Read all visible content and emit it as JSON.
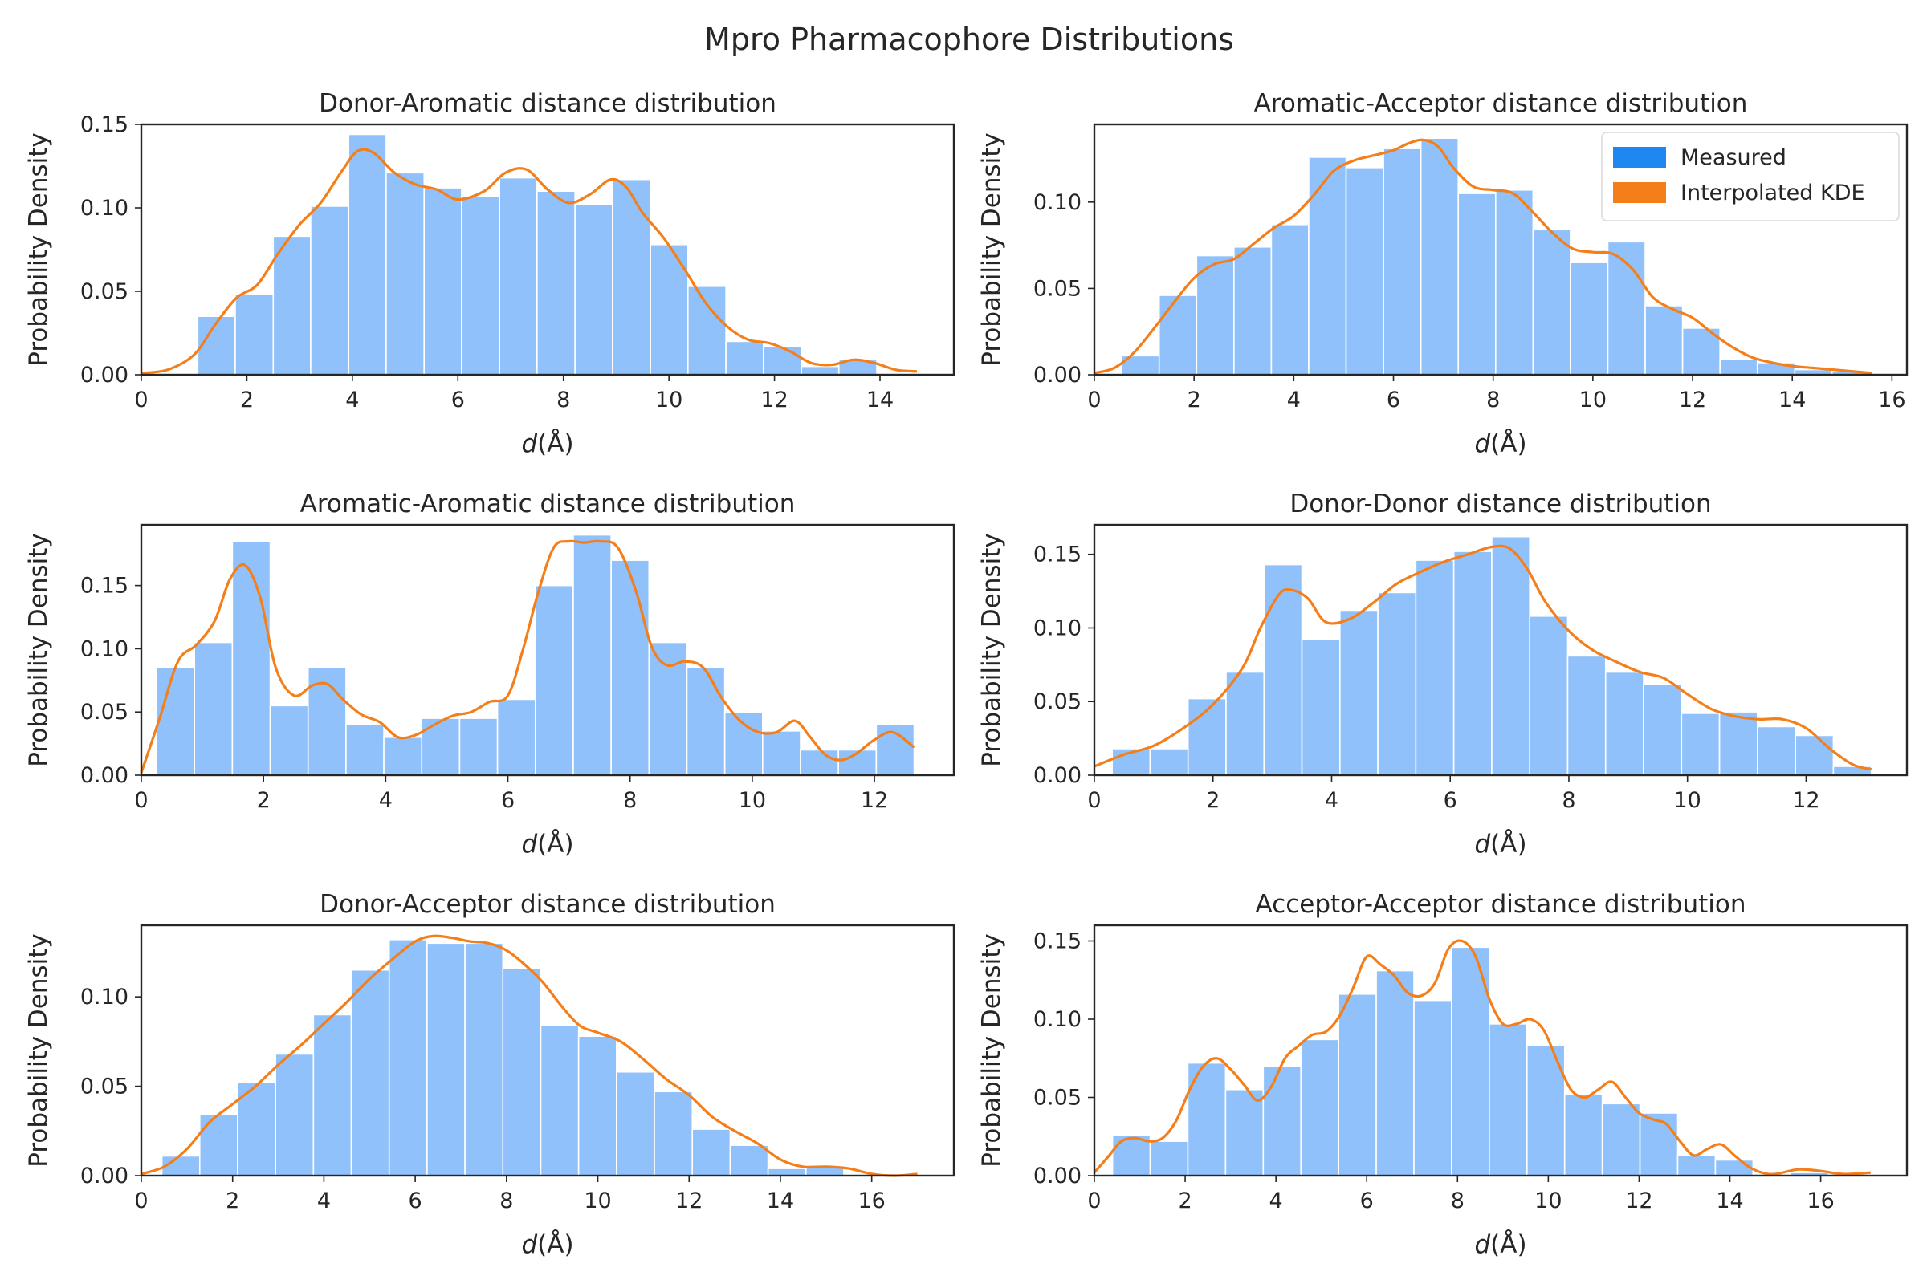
{
  "figure": {
    "title": "Mpro Pharmacophore Distributions",
    "colors": {
      "bars": "#90C1FA",
      "kde": "#F47F1A",
      "legend_measured": "#1E87F0",
      "legend_kde": "#F47F1A",
      "frame": "#262626"
    }
  },
  "legend": {
    "location": "upper right",
    "panel": 1,
    "entries": [
      "Measured",
      "Interpolated KDE"
    ]
  },
  "chart_data": [
    {
      "type": "histogram+kde",
      "title": "Donor-Aromatic distance distribution",
      "xlabel": "d(Å)",
      "ylabel": "Probability Density",
      "xlim": [
        0,
        15.4
      ],
      "ylim": [
        0,
        0.15
      ],
      "xticks": [
        0,
        2,
        4,
        6,
        8,
        10,
        12,
        14
      ],
      "yticks": [
        "0.00",
        "0.05",
        "0.10",
        "0.15"
      ],
      "series": [
        {
          "name": "Measured",
          "bin_edges": [
            1.07,
            1.78,
            2.5,
            3.21,
            3.93,
            4.64,
            5.36,
            6.07,
            6.79,
            7.5,
            8.22,
            8.93,
            9.65,
            10.36,
            11.08,
            11.79,
            12.51,
            13.22,
            13.94
          ],
          "values": [
            0.035,
            0.048,
            0.083,
            0.101,
            0.144,
            0.121,
            0.112,
            0.107,
            0.118,
            0.11,
            0.102,
            0.117,
            0.078,
            0.053,
            0.02,
            0.017,
            0.005,
            0.009
          ]
        },
        {
          "name": "Interpolated KDE",
          "x": [
            0,
            0.5,
            1.0,
            1.4,
            1.8,
            2.2,
            2.6,
            3.0,
            3.4,
            3.8,
            4.1,
            4.4,
            4.8,
            5.2,
            5.6,
            6.0,
            6.5,
            6.9,
            7.3,
            7.7,
            8.1,
            8.5,
            8.9,
            9.2,
            9.5,
            9.9,
            10.3,
            10.7,
            11.1,
            11.5,
            11.9,
            12.3,
            12.7,
            13.1,
            13.5,
            13.9,
            14.3,
            14.7
          ],
          "y": [
            0.001,
            0.003,
            0.012,
            0.03,
            0.046,
            0.054,
            0.073,
            0.09,
            0.103,
            0.122,
            0.134,
            0.133,
            0.121,
            0.114,
            0.111,
            0.105,
            0.11,
            0.121,
            0.123,
            0.111,
            0.103,
            0.108,
            0.117,
            0.112,
            0.097,
            0.082,
            0.063,
            0.043,
            0.029,
            0.021,
            0.019,
            0.014,
            0.007,
            0.006,
            0.009,
            0.007,
            0.003,
            0.002
          ]
        }
      ]
    },
    {
      "type": "histogram+kde",
      "title": "Aromatic-Acceptor distance distribution",
      "xlabel": "d(Å)",
      "ylabel": "Probability Density",
      "xlim": [
        0,
        16.3
      ],
      "ylim": [
        0,
        0.145
      ],
      "xticks": [
        0,
        2,
        4,
        6,
        8,
        10,
        12,
        14,
        16
      ],
      "yticks": [
        "0.00",
        "0.05",
        "0.10"
      ],
      "series": [
        {
          "name": "Measured",
          "bin_edges": [
            0.55,
            1.3,
            2.05,
            2.8,
            3.55,
            4.3,
            5.05,
            5.8,
            6.55,
            7.3,
            8.05,
            8.8,
            9.55,
            10.3,
            11.05,
            11.8,
            12.55,
            13.3,
            14.05,
            14.8,
            15.55
          ],
          "values": [
            0.011,
            0.046,
            0.069,
            0.074,
            0.087,
            0.126,
            0.12,
            0.131,
            0.137,
            0.105,
            0.107,
            0.084,
            0.065,
            0.077,
            0.04,
            0.027,
            0.009,
            0.007,
            0.003,
            0.002
          ]
        },
        {
          "name": "Interpolated KDE",
          "x": [
            0,
            0.4,
            0.8,
            1.2,
            1.6,
            2.0,
            2.4,
            2.8,
            3.2,
            3.6,
            4.0,
            4.4,
            4.8,
            5.2,
            5.6,
            6.0,
            6.3,
            6.6,
            6.9,
            7.2,
            7.6,
            8.0,
            8.4,
            8.8,
            9.2,
            9.6,
            10.0,
            10.4,
            10.8,
            11.2,
            11.6,
            12.0,
            12.4,
            12.8,
            13.2,
            13.6,
            14.0,
            14.4,
            14.8,
            15.2,
            15.6
          ],
          "y": [
            0.001,
            0.004,
            0.013,
            0.027,
            0.042,
            0.056,
            0.064,
            0.067,
            0.076,
            0.085,
            0.092,
            0.104,
            0.118,
            0.124,
            0.127,
            0.13,
            0.134,
            0.136,
            0.132,
            0.12,
            0.109,
            0.107,
            0.105,
            0.094,
            0.082,
            0.073,
            0.071,
            0.07,
            0.061,
            0.045,
            0.038,
            0.033,
            0.024,
            0.016,
            0.01,
            0.007,
            0.005,
            0.004,
            0.003,
            0.002,
            0.001
          ]
        }
      ]
    },
    {
      "type": "histogram+kde",
      "title": "Aromatic-Aromatic distance distribution",
      "xlabel": "d(Å)",
      "ylabel": "Probability Density",
      "xlim": [
        0,
        13.3
      ],
      "ylim": [
        0,
        0.198
      ],
      "xticks": [
        0,
        2,
        4,
        6,
        8,
        10,
        12
      ],
      "yticks": [
        "0.00",
        "0.05",
        "0.10",
        "0.15"
      ],
      "series": [
        {
          "name": "Measured",
          "bin_edges": [
            0.25,
            0.87,
            1.49,
            2.11,
            2.73,
            3.35,
            3.97,
            4.59,
            5.21,
            5.83,
            6.45,
            7.07,
            7.69,
            8.31,
            8.93,
            9.55,
            10.17,
            10.79,
            11.41,
            12.03,
            12.65
          ],
          "values": [
            0.085,
            0.105,
            0.185,
            0.055,
            0.085,
            0.04,
            0.03,
            0.045,
            0.045,
            0.06,
            0.15,
            0.19,
            0.17,
            0.105,
            0.085,
            0.05,
            0.035,
            0.02,
            0.02,
            0.04
          ]
        },
        {
          "name": "Interpolated KDE",
          "x": [
            0,
            0.3,
            0.6,
            0.9,
            1.2,
            1.45,
            1.7,
            1.95,
            2.2,
            2.5,
            2.8,
            3.05,
            3.3,
            3.6,
            3.9,
            4.2,
            4.5,
            4.8,
            5.1,
            5.4,
            5.7,
            6.0,
            6.25,
            6.5,
            6.75,
            7.0,
            7.25,
            7.5,
            7.8,
            8.1,
            8.35,
            8.6,
            8.9,
            9.2,
            9.5,
            9.8,
            10.1,
            10.4,
            10.7,
            10.95,
            11.2,
            11.45,
            11.7,
            12.0,
            12.3,
            12.65
          ],
          "y": [
            0.002,
            0.045,
            0.09,
            0.103,
            0.122,
            0.155,
            0.166,
            0.14,
            0.085,
            0.063,
            0.071,
            0.072,
            0.06,
            0.048,
            0.042,
            0.03,
            0.032,
            0.04,
            0.047,
            0.05,
            0.058,
            0.063,
            0.1,
            0.145,
            0.18,
            0.185,
            0.184,
            0.185,
            0.18,
            0.145,
            0.102,
            0.087,
            0.09,
            0.085,
            0.061,
            0.043,
            0.034,
            0.034,
            0.043,
            0.03,
            0.016,
            0.012,
            0.017,
            0.028,
            0.034,
            0.022
          ]
        }
      ]
    },
    {
      "type": "histogram+kde",
      "title": "Donor-Donor distance distribution",
      "xlabel": "d(Å)",
      "ylabel": "Probability Density",
      "xlim": [
        0,
        13.7
      ],
      "ylim": [
        0,
        0.17
      ],
      "xticks": [
        0,
        2,
        4,
        6,
        8,
        10,
        12
      ],
      "yticks": [
        "0.00",
        "0.05",
        "0.10",
        "0.15"
      ],
      "series": [
        {
          "name": "Measured",
          "bin_edges": [
            0.3,
            0.94,
            1.58,
            2.22,
            2.86,
            3.5,
            4.14,
            4.78,
            5.42,
            6.06,
            6.7,
            7.34,
            7.98,
            8.62,
            9.26,
            9.9,
            10.54,
            11.18,
            11.82,
            12.46,
            13.1
          ],
          "values": [
            0.018,
            0.018,
            0.052,
            0.07,
            0.143,
            0.092,
            0.112,
            0.124,
            0.146,
            0.152,
            0.162,
            0.108,
            0.081,
            0.07,
            0.062,
            0.042,
            0.043,
            0.033,
            0.027,
            0.006
          ]
        },
        {
          "name": "Interpolated KDE",
          "x": [
            0,
            0.5,
            1.0,
            1.5,
            2.0,
            2.5,
            2.8,
            3.1,
            3.3,
            3.6,
            3.9,
            4.3,
            4.7,
            5.1,
            5.5,
            5.9,
            6.3,
            6.7,
            7.0,
            7.3,
            7.6,
            8.0,
            8.4,
            8.8,
            9.2,
            9.6,
            10.0,
            10.4,
            10.8,
            11.2,
            11.6,
            12.0,
            12.4,
            12.8,
            13.1
          ],
          "y": [
            0.006,
            0.014,
            0.02,
            0.032,
            0.048,
            0.073,
            0.1,
            0.122,
            0.126,
            0.12,
            0.104,
            0.106,
            0.117,
            0.13,
            0.138,
            0.145,
            0.15,
            0.155,
            0.154,
            0.14,
            0.118,
            0.098,
            0.085,
            0.077,
            0.07,
            0.066,
            0.055,
            0.045,
            0.04,
            0.038,
            0.038,
            0.032,
            0.018,
            0.007,
            0.004
          ]
        }
      ]
    },
    {
      "type": "histogram+kde",
      "title": "Donor-Acceptor distance distribution",
      "xlabel": "d(Å)",
      "ylabel": "Probability Density",
      "xlim": [
        0,
        17.8
      ],
      "ylim": [
        0,
        0.14
      ],
      "xticks": [
        0,
        2,
        4,
        6,
        8,
        10,
        12,
        14,
        16
      ],
      "yticks": [
        "0.00",
        "0.05",
        "0.10"
      ],
      "series": [
        {
          "name": "Measured",
          "bin_edges": [
            0.45,
            1.28,
            2.11,
            2.94,
            3.77,
            4.6,
            5.43,
            6.26,
            7.09,
            7.92,
            8.75,
            9.58,
            10.41,
            11.24,
            12.07,
            12.9,
            13.73,
            14.56,
            15.39
          ],
          "values": [
            0.011,
            0.034,
            0.052,
            0.068,
            0.09,
            0.115,
            0.132,
            0.13,
            0.13,
            0.116,
            0.084,
            0.078,
            0.058,
            0.047,
            0.026,
            0.017,
            0.004,
            0.005
          ]
        },
        {
          "name": "Interpolated KDE",
          "x": [
            0,
            0.5,
            1.0,
            1.5,
            2.0,
            2.5,
            3.0,
            3.5,
            4.0,
            4.5,
            5.0,
            5.5,
            6.0,
            6.4,
            6.8,
            7.2,
            7.6,
            8.0,
            8.4,
            8.8,
            9.2,
            9.6,
            10.0,
            10.5,
            11.0,
            11.5,
            12.0,
            12.5,
            13.0,
            13.5,
            14.0,
            14.5,
            15.0,
            15.5,
            16.0,
            16.5,
            17.0
          ],
          "y": [
            0.001,
            0.005,
            0.015,
            0.03,
            0.04,
            0.05,
            0.062,
            0.073,
            0.085,
            0.097,
            0.11,
            0.121,
            0.131,
            0.134,
            0.133,
            0.131,
            0.13,
            0.126,
            0.118,
            0.108,
            0.095,
            0.084,
            0.08,
            0.075,
            0.065,
            0.054,
            0.045,
            0.033,
            0.025,
            0.018,
            0.009,
            0.005,
            0.005,
            0.004,
            0.001,
            0.0,
            0.001
          ]
        }
      ]
    },
    {
      "type": "histogram+kde",
      "title": "Acceptor-Acceptor distance distribution",
      "xlabel": "d(Å)",
      "ylabel": "Probability Density",
      "xlim": [
        0,
        17.9
      ],
      "ylim": [
        0,
        0.16
      ],
      "xticks": [
        0,
        2,
        4,
        6,
        8,
        10,
        12,
        14,
        16
      ],
      "yticks": [
        "0.00",
        "0.05",
        "0.10",
        "0.15"
      ],
      "series": [
        {
          "name": "Measured",
          "bin_edges": [
            0.4,
            1.23,
            2.06,
            2.89,
            3.72,
            4.55,
            5.38,
            6.21,
            7.04,
            7.87,
            8.7,
            9.53,
            10.36,
            11.19,
            12.02,
            12.85,
            13.68,
            14.51,
            15.34,
            16.17,
            17.0
          ],
          "values": [
            0.026,
            0.022,
            0.072,
            0.055,
            0.07,
            0.087,
            0.116,
            0.131,
            0.112,
            0.146,
            0.097,
            0.083,
            0.052,
            0.046,
            0.04,
            0.013,
            0.01,
            0.001,
            0.002,
            0.001
          ]
        },
        {
          "name": "Interpolated KDE",
          "x": [
            0,
            0.3,
            0.6,
            0.9,
            1.2,
            1.5,
            1.8,
            2.1,
            2.4,
            2.7,
            3.0,
            3.3,
            3.6,
            3.9,
            4.2,
            4.5,
            4.8,
            5.1,
            5.4,
            5.7,
            6.0,
            6.3,
            6.6,
            6.9,
            7.2,
            7.5,
            7.8,
            8.1,
            8.4,
            8.7,
            9.0,
            9.3,
            9.6,
            9.9,
            10.2,
            10.5,
            10.8,
            11.1,
            11.4,
            11.7,
            12.0,
            12.3,
            12.6,
            12.9,
            13.2,
            13.5,
            13.8,
            14.1,
            14.4,
            14.7,
            15.0,
            15.5,
            16.0,
            16.5,
            17.1
          ],
          "y": [
            0.002,
            0.012,
            0.022,
            0.024,
            0.022,
            0.024,
            0.035,
            0.055,
            0.07,
            0.075,
            0.068,
            0.058,
            0.048,
            0.057,
            0.075,
            0.083,
            0.09,
            0.092,
            0.102,
            0.12,
            0.14,
            0.135,
            0.128,
            0.117,
            0.115,
            0.123,
            0.145,
            0.15,
            0.14,
            0.113,
            0.097,
            0.097,
            0.1,
            0.093,
            0.073,
            0.055,
            0.05,
            0.055,
            0.06,
            0.05,
            0.04,
            0.036,
            0.033,
            0.022,
            0.013,
            0.017,
            0.02,
            0.013,
            0.006,
            0.002,
            0.001,
            0.004,
            0.003,
            0.001,
            0.002
          ]
        }
      ]
    }
  ]
}
